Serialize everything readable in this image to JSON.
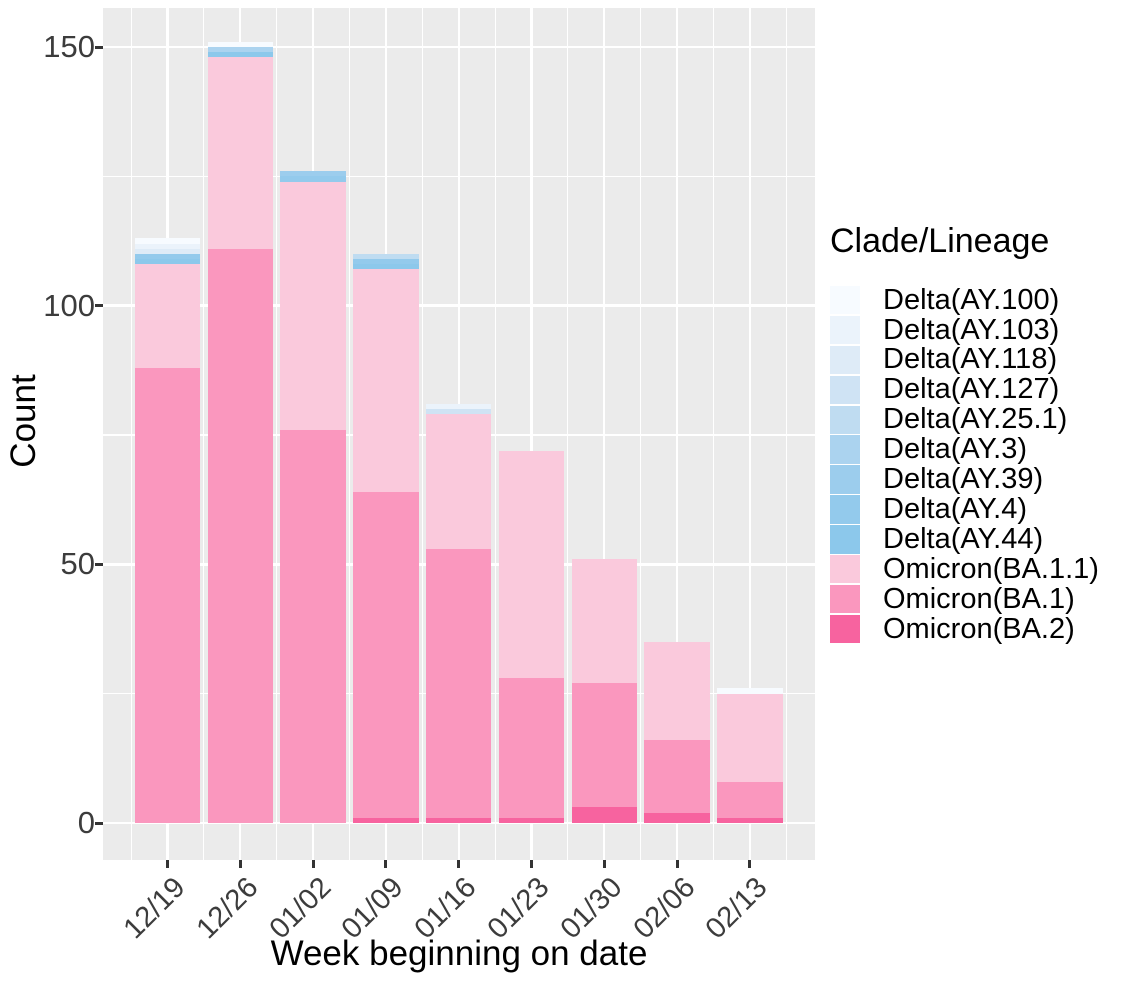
{
  "figure": {
    "panel_bg": "#EBEBEB",
    "grid_color": "#FFFFFF",
    "tick_text_color": "#3C3C3C",
    "title_color": "#000000",
    "y_axis": {
      "title": "Count",
      "tick_labels": [
        "0",
        "50",
        "100",
        "150"
      ],
      "tick_values": [
        0,
        50,
        100,
        150
      ],
      "minor_values": [
        25,
        75,
        125
      ]
    },
    "x_axis": {
      "title": "Week beginning on date",
      "tick_labels": [
        "12/19",
        "12/26",
        "01/02",
        "01/09",
        "01/16",
        "01/23",
        "01/30",
        "02/06",
        "02/13"
      ]
    },
    "legend": {
      "title": "Clade/Lineage",
      "entries": [
        {
          "label": "Delta(AY.100)",
          "color": "#F7FBFF"
        },
        {
          "label": "Delta(AY.103)",
          "color": "#EBF3FB"
        },
        {
          "label": "Delta(AY.118)",
          "color": "#DEEBF7"
        },
        {
          "label": "Delta(AY.127)",
          "color": "#CFE3F4"
        },
        {
          "label": "Delta(AY.25.1)",
          "color": "#BFDCF1"
        },
        {
          "label": "Delta(AY.3)",
          "color": "#ABD3EF"
        },
        {
          "label": "Delta(AY.39)",
          "color": "#9CCDED"
        },
        {
          "label": "Delta(AY.4)",
          "color": "#93CAEC"
        },
        {
          "label": "Delta(AY.44)",
          "color": "#8CC8EB"
        },
        {
          "label": "Omicron(BA.1.1)",
          "color": "#FAC9DC"
        },
        {
          "label": "Omicron(BA.1)",
          "color": "#FA97BE"
        },
        {
          "label": "Omicron(BA.2)",
          "color": "#F7639F"
        }
      ]
    }
  },
  "chart_data": {
    "type": "bar",
    "stacked": true,
    "title": "",
    "xlabel": "Week beginning on date",
    "ylabel": "Count",
    "legend_title": "Clade/Lineage",
    "legend_position": "right",
    "grid": true,
    "ylim": [
      0,
      155
    ],
    "yticks": [
      0,
      50,
      100,
      150
    ],
    "categories": [
      "12/19",
      "12/26",
      "01/02",
      "01/09",
      "01/16",
      "01/23",
      "01/30",
      "02/06",
      "02/13"
    ],
    "totals": [
      113,
      151,
      126,
      110,
      81,
      72,
      51,
      35,
      26
    ],
    "series_bottom_to_top": [
      {
        "name": "Omicron(BA.2)",
        "color": "#F7639F",
        "values": [
          0,
          0,
          0,
          1,
          1,
          1,
          3,
          2,
          1
        ]
      },
      {
        "name": "Omicron(BA.1)",
        "color": "#FA97BE",
        "values": [
          88,
          111,
          76,
          63,
          52,
          27,
          24,
          14,
          7
        ]
      },
      {
        "name": "Omicron(BA.1.1)",
        "color": "#FAC9DC",
        "values": [
          20,
          37,
          48,
          43,
          26,
          44,
          24,
          19,
          17
        ]
      },
      {
        "name": "Delta(AY.44)",
        "color": "#8CC8EB",
        "values": [
          1,
          1,
          0,
          1,
          0,
          0,
          0,
          0,
          0
        ]
      },
      {
        "name": "Delta(AY.4)",
        "color": "#93CAEC",
        "values": [
          1,
          0,
          1,
          1,
          0,
          0,
          0,
          0,
          0
        ]
      },
      {
        "name": "Delta(AY.39)",
        "color": "#9CCDED",
        "values": [
          0,
          0,
          1,
          0,
          0,
          0,
          0,
          0,
          0
        ]
      },
      {
        "name": "Delta(AY.3)",
        "color": "#ABD3EF",
        "values": [
          0,
          1,
          0,
          0,
          0,
          0,
          0,
          0,
          0
        ]
      },
      {
        "name": "Delta(AY.25.1)",
        "color": "#BFDCF1",
        "values": [
          0,
          0,
          0,
          1,
          0,
          0,
          0,
          0,
          0
        ]
      },
      {
        "name": "Delta(AY.127)",
        "color": "#CFE3F4",
        "values": [
          0,
          0,
          0,
          0,
          1,
          0,
          0,
          0,
          0
        ]
      },
      {
        "name": "Delta(AY.118)",
        "color": "#DEEBF7",
        "values": [
          1,
          0,
          0,
          0,
          0,
          0,
          0,
          0,
          0
        ]
      },
      {
        "name": "Delta(AY.103)",
        "color": "#EBF3FB",
        "values": [
          1,
          0,
          0,
          0,
          1,
          0,
          0,
          0,
          0
        ]
      },
      {
        "name": "Delta(AY.100)",
        "color": "#F7FBFF",
        "values": [
          1,
          1,
          0,
          0,
          0,
          0,
          0,
          0,
          1
        ]
      }
    ]
  }
}
